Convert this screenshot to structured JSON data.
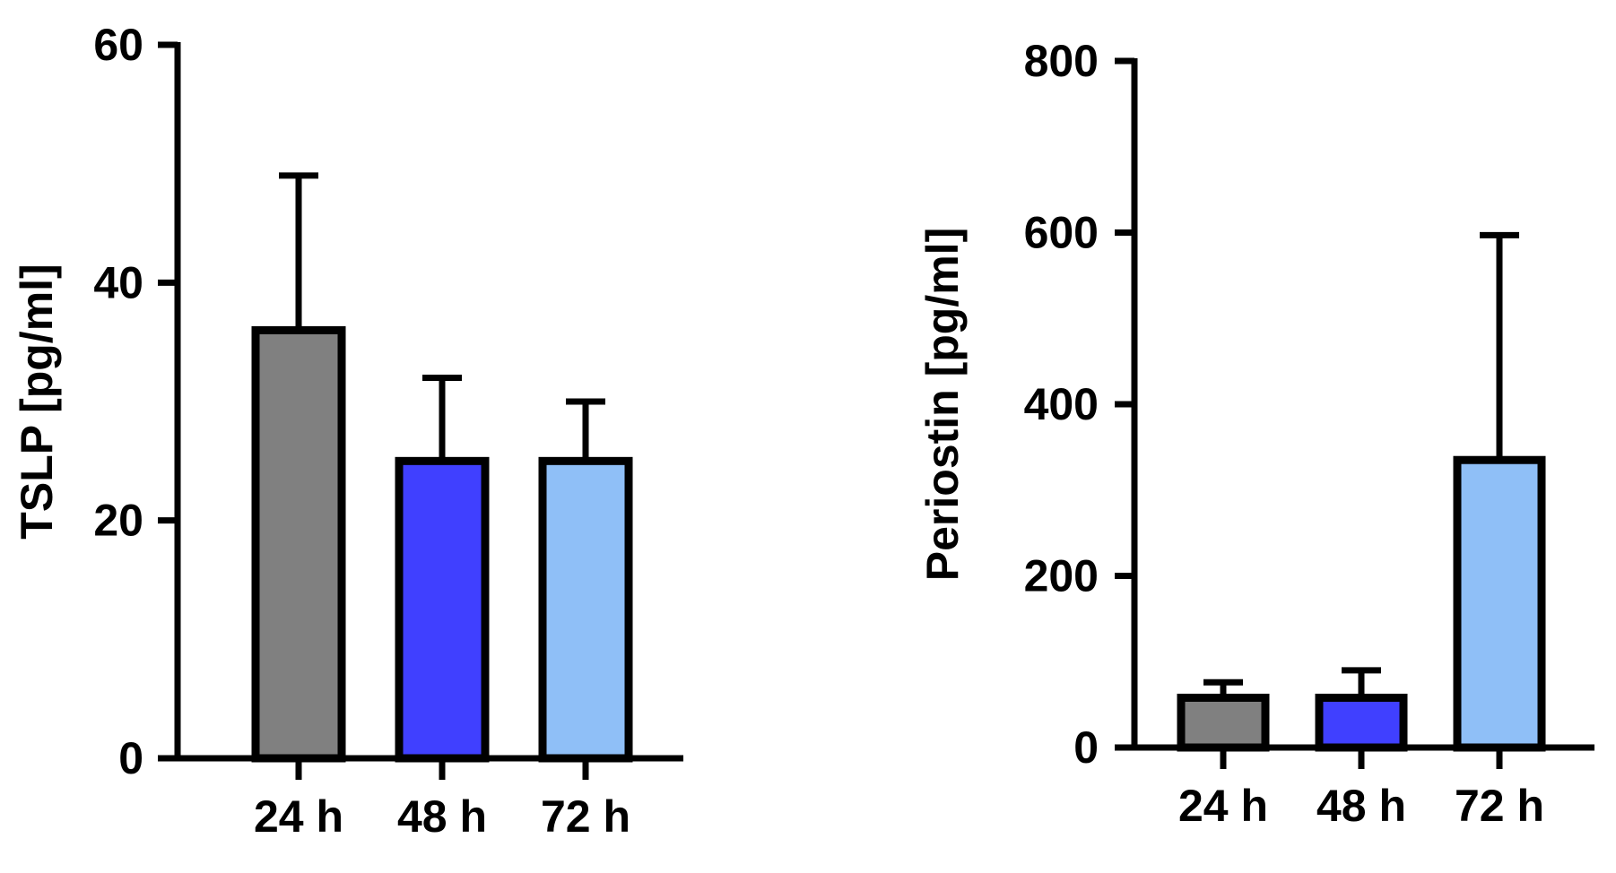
{
  "chart_data": [
    {
      "type": "bar",
      "ylabel": "TSLP [pg/ml]",
      "categories": [
        "24 h",
        "48 h",
        "72 h"
      ],
      "values": [
        36,
        25,
        25
      ],
      "errors": [
        13,
        7,
        5
      ],
      "ylim": [
        0,
        60
      ],
      "yticks": [
        0,
        20,
        40,
        60
      ],
      "ytick_labels": [
        "0",
        "20",
        "40",
        "60"
      ],
      "bar_colors": [
        "#808080",
        "#4040ff",
        "#8fbff7"
      ],
      "grid": false
    },
    {
      "type": "bar",
      "ylabel": "Periostin [pg/ml]",
      "categories": [
        "24 h",
        "48 h",
        "72 h"
      ],
      "values": [
        58,
        58,
        335
      ],
      "errors": [
        18,
        32,
        262
      ],
      "ylim": [
        0,
        800
      ],
      "yticks": [
        0,
        200,
        400,
        600,
        800
      ],
      "ytick_labels": [
        "0",
        "200",
        "400",
        "600",
        "800"
      ],
      "bar_colors": [
        "#808080",
        "#4040ff",
        "#8fbff7"
      ],
      "grid": false
    }
  ]
}
